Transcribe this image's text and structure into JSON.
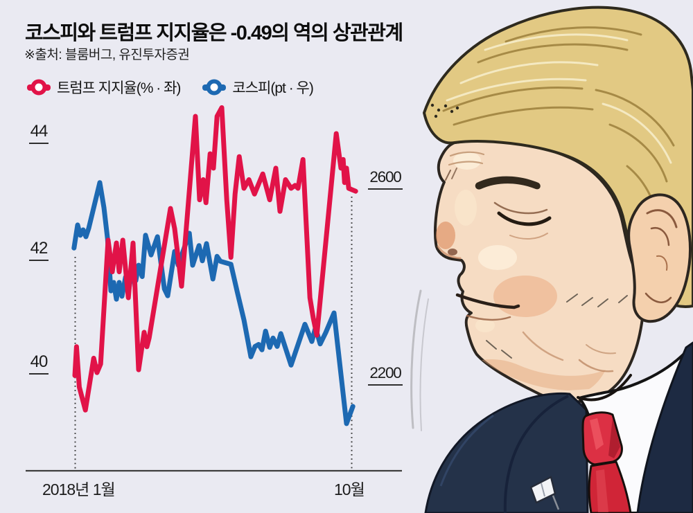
{
  "title": "코스피와 트럼프 지지율은 -0.49의 역의 상관관계",
  "source": "※출처: 블룸버그, 유진투자증권",
  "legend": [
    {
      "label": "트럼프 지지율(% · 좌)",
      "color": "#e11348"
    },
    {
      "label": "코스피(pt · 우)",
      "color": "#1d69b2"
    }
  ],
  "axes": {
    "left_ticks": [
      "44",
      "42",
      "40"
    ],
    "right_ticks": [
      "2600",
      "2200"
    ],
    "x_start": "2018년 1월",
    "x_end": "10월"
  },
  "colors": {
    "background": "#eaeaf2",
    "approval_red": "#e11348",
    "kospi_blue": "#1d69b2",
    "axis": "#3d3d3d"
  },
  "chart_data": {
    "type": "line",
    "title": "코스피와 트럼프 지지율은 -0.49의 역의 상관관계",
    "correlation": -0.49,
    "x_axis": {
      "start_label": "2018년 1월",
      "end_label": "10월",
      "x_unit": "percent of Jan–Oct 2018 span"
    },
    "grid": false,
    "legend_position": "top-left",
    "series": [
      {
        "name": "코스피(pt · 우)",
        "axis": "right",
        "unit": "pt",
        "color": "#1d69b2",
        "ylim": [
          2050,
          2700
        ],
        "ticks": [
          2600,
          2200
        ],
        "points": [
          [
            -0.3,
            2480
          ],
          [
            1,
            2527
          ],
          [
            2,
            2506
          ],
          [
            3,
            2517
          ],
          [
            4,
            2503
          ],
          [
            5,
            2520
          ],
          [
            9,
            2613
          ],
          [
            10.5,
            2562
          ],
          [
            11.8,
            2499
          ],
          [
            13,
            2393
          ],
          [
            14,
            2410
          ],
          [
            15,
            2376
          ],
          [
            16,
            2410
          ],
          [
            17,
            2382
          ],
          [
            18.3,
            2421
          ],
          [
            19.5,
            2396
          ],
          [
            20.8,
            2440
          ],
          [
            22,
            2414
          ],
          [
            23,
            2445
          ],
          [
            24.3,
            2422
          ],
          [
            25.5,
            2506
          ],
          [
            27.5,
            2466
          ],
          [
            29.8,
            2503
          ],
          [
            32.3,
            2397
          ],
          [
            33.5,
            2383
          ],
          [
            36,
            2473
          ],
          [
            37.3,
            2445
          ],
          [
            41.3,
            2510
          ],
          [
            42.5,
            2445
          ],
          [
            44.8,
            2485
          ],
          [
            46,
            2454
          ],
          [
            47.5,
            2489
          ],
          [
            49.8,
            2417
          ],
          [
            51.3,
            2463
          ],
          [
            52.5,
            2453
          ],
          [
            56.3,
            2447
          ],
          [
            58.5,
            2393
          ],
          [
            61,
            2334
          ],
          [
            63.5,
            2259
          ],
          [
            65,
            2280
          ],
          [
            66.3,
            2284
          ],
          [
            67.5,
            2273
          ],
          [
            68.8,
            2311
          ],
          [
            70.3,
            2278
          ],
          [
            71.5,
            2297
          ],
          [
            73,
            2280
          ],
          [
            74.3,
            2306
          ],
          [
            78,
            2242
          ],
          [
            83,
            2325
          ],
          [
            85.5,
            2290
          ],
          [
            86.8,
            2318
          ],
          [
            88.5,
            2285
          ],
          [
            90.5,
            2308
          ],
          [
            93.5,
            2348
          ],
          [
            98,
            2123
          ],
          [
            100.3,
            2158
          ]
        ]
      },
      {
        "name": "트럼프 지지율(% · 좌)",
        "axis": "left",
        "unit": "%",
        "color": "#e11348",
        "ylim": [
          39,
          45
        ],
        "ticks": [
          44,
          42,
          40
        ],
        "points": [
          [
            0,
            40.0
          ],
          [
            0.6,
            40.5
          ],
          [
            1.6,
            39.8
          ],
          [
            3.8,
            39.4
          ],
          [
            6.8,
            40.3
          ],
          [
            8,
            40.05
          ],
          [
            9.3,
            40.2
          ],
          [
            12,
            42.35
          ],
          [
            13.5,
            41.8
          ],
          [
            15,
            42.3
          ],
          [
            16,
            41.8
          ],
          [
            17.3,
            42.35
          ],
          [
            19.3,
            41.35
          ],
          [
            21,
            42.3
          ],
          [
            23,
            40.1
          ],
          [
            25,
            40.75
          ],
          [
            26,
            40.5
          ],
          [
            26.8,
            40.65
          ],
          [
            34.5,
            42.9
          ],
          [
            36,
            42.55
          ],
          [
            38.5,
            41.55
          ],
          [
            43.5,
            44.5
          ],
          [
            45,
            43.05
          ],
          [
            46.3,
            43.4
          ],
          [
            47.3,
            43.0
          ],
          [
            48.8,
            43.85
          ],
          [
            50,
            43.6
          ],
          [
            51.3,
            44.5
          ],
          [
            53,
            44.65
          ],
          [
            54.8,
            43.05
          ],
          [
            56.3,
            42.05
          ],
          [
            57.8,
            43.15
          ],
          [
            59.3,
            43.8
          ],
          [
            61,
            43.25
          ],
          [
            62.8,
            43.4
          ],
          [
            64.8,
            43.15
          ],
          [
            67.8,
            43.5
          ],
          [
            70.3,
            43.05
          ],
          [
            72.5,
            43.6
          ],
          [
            74,
            42.85
          ],
          [
            76,
            43.4
          ],
          [
            78,
            43.25
          ],
          [
            79.5,
            43.3
          ],
          [
            80.5,
            43.25
          ],
          [
            82.3,
            43.75
          ],
          [
            84.8,
            41.35
          ],
          [
            86,
            41.0
          ],
          [
            87.3,
            40.7
          ],
          [
            94.3,
            44.2
          ],
          [
            96,
            43.6
          ],
          [
            96.8,
            43.75
          ],
          [
            97.3,
            43.35
          ],
          [
            98,
            43.6
          ],
          [
            98.8,
            43.25
          ],
          [
            101.3,
            43.2
          ]
        ]
      }
    ]
  }
}
